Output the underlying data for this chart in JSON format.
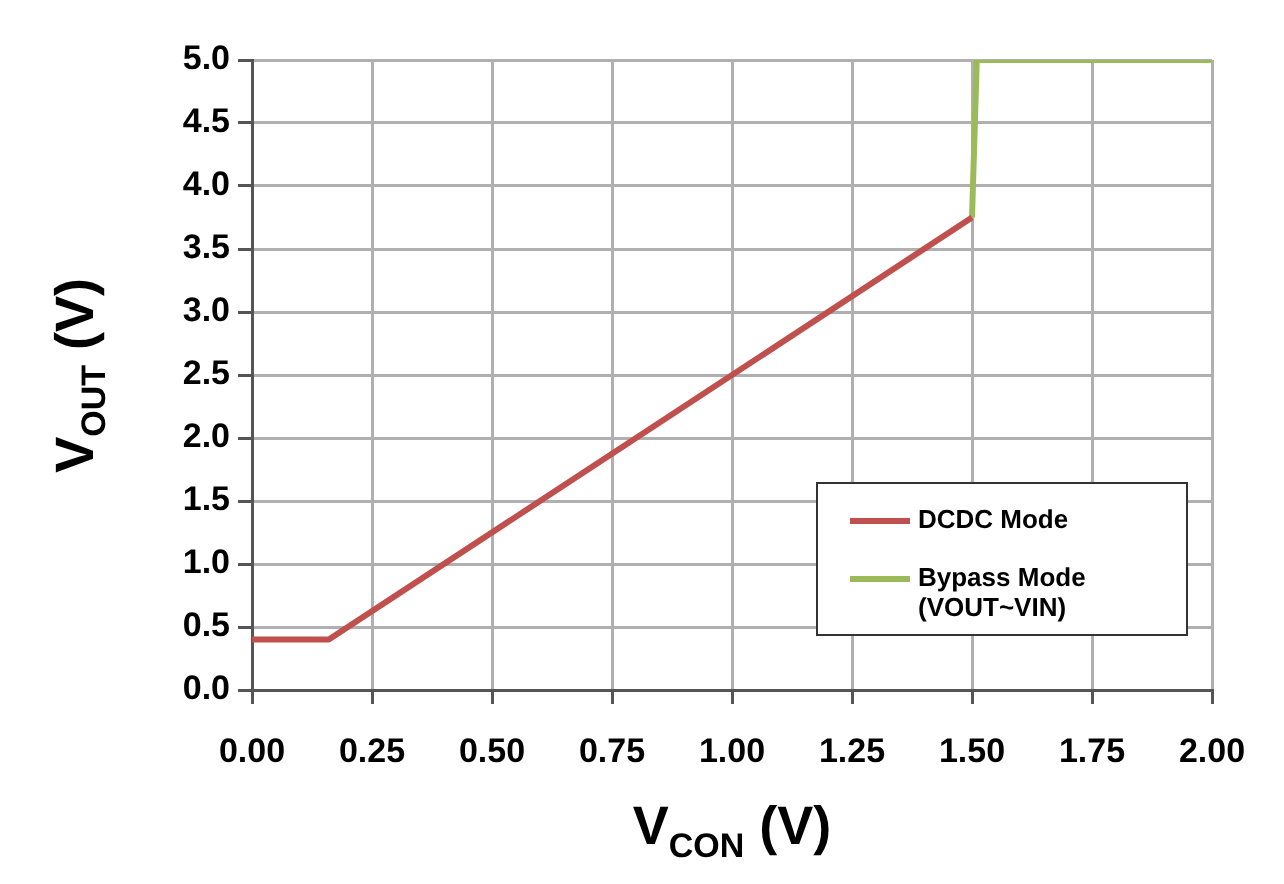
{
  "chart_data": {
    "type": "line",
    "xlabel": "V$_{CON}$ (V)",
    "ylabel": "V$_{OUT}$ (V)",
    "series": [
      {
        "name": "DCDC Mode",
        "color": "#c0504d",
        "x": [
          0,
          0.16,
          1.5
        ],
        "values": [
          0.4,
          0.4,
          3.75
        ]
      },
      {
        "name": "Bypass Mode (VOUT~VIN)",
        "color": "#9bbb59",
        "x": [
          1.5,
          1.51,
          2.0
        ],
        "values": [
          3.75,
          5.0,
          5.0
        ]
      }
    ],
    "xlim": [
      0,
      2
    ],
    "xticks": [
      {
        "value": 0,
        "label": "0.00"
      },
      0.25,
      {
        "value": 0.5,
        "label": "0.50"
      },
      0.75,
      {
        "value": 1,
        "label": "1.00"
      },
      1.25,
      {
        "value": 1.5,
        "label": "1.50"
      },
      1.75,
      {
        "value": 2,
        "label": "2.00"
      }
    ],
    "ylim": [
      0,
      5
    ],
    "yticks": [
      {
        "value": 0,
        "label": "0.0"
      },
      0.5,
      {
        "value": 1,
        "label": "1.0"
      },
      1.5,
      {
        "value": 2,
        "label": "2.0"
      },
      2.5,
      {
        "value": 3,
        "label": "3.0"
      },
      3.5,
      {
        "value": 4,
        "label": "4.0"
      },
      4.5,
      {
        "value": 5,
        "label": "5.0"
      }
    ],
    "grid": true,
    "legend": "bottom right",
    "marker": "none",
    "line_style": "solid"
  }
}
